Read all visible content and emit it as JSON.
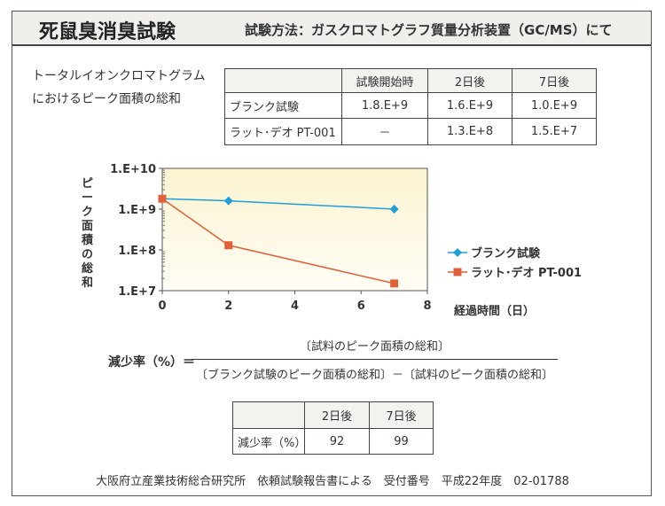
{
  "header": {
    "title": "死鼠臭消臭試験",
    "method": "試験方法：ガスクロマトグラフ質量分析装置（GC/MS）にて"
  },
  "table_caption": [
    "トータルイオンクロマトグラム",
    "におけるピーク面積の総和"
  ],
  "peak_table": {
    "columns": [
      "",
      "試験開始時",
      "2日後",
      "7日後"
    ],
    "rows": [
      [
        "ブランク試験",
        "1.8.E+9",
        "1.6.E+9",
        "1.0.E+9"
      ],
      [
        "ラット･デオ PT-001",
        "－",
        "1.3.E+8",
        "1.5.E+7"
      ]
    ]
  },
  "chart_data": {
    "type": "line",
    "xlabel": "経過時間（日）",
    "ylabel": "ピーク面積の総和",
    "xlim": [
      0,
      8
    ],
    "ylim": [
      10000000.0,
      10000000000.0
    ],
    "yscale": "log",
    "xticks": [
      "0",
      "2",
      "4",
      "6",
      "8"
    ],
    "yticks": [
      "1.E+7",
      "1.E+8",
      "1.E+9",
      "1.E+10"
    ],
    "legend": "right",
    "series": [
      {
        "name": "ブランク試験",
        "color": "#1ea0d8",
        "marker": "diamond",
        "x": [
          0,
          2,
          7
        ],
        "y": [
          1800000000.0,
          1600000000.0,
          1000000000.0
        ]
      },
      {
        "name": "ラット･デオ PT-001",
        "color": "#e0603a",
        "marker": "square",
        "x": [
          0,
          2,
          7
        ],
        "y": [
          1800000000.0,
          130000000.0,
          15000000.0
        ]
      }
    ]
  },
  "formula": {
    "lhs": "減少率（%）＝",
    "numerator": "〔試料のピーク面積の総和〕",
    "denominator": "〔ブランク試験のピーク面積の総和〕－〔試料のピーク面積の総和〕"
  },
  "reduction_table": {
    "columns": [
      "",
      "2日後",
      "7日後"
    ],
    "rows": [
      [
        "減少率（%）",
        "92",
        "99"
      ]
    ]
  },
  "footer": "大阪府立産業技術総合研究所　依頼試験報告書による　受付番号　平成22年度　02-01788"
}
